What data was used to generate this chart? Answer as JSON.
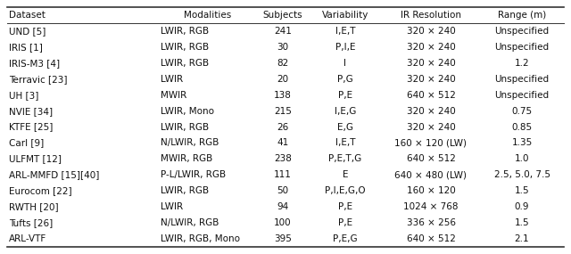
{
  "headers": [
    "Dataset",
    "Modalities",
    "Subjects",
    "Variability",
    "IR Resolution",
    "Range (m)"
  ],
  "rows": [
    [
      "UND [5]",
      "LWIR, RGB",
      "241",
      "I,E,T",
      "320 × 240",
      "Unspecified"
    ],
    [
      "IRIS [1]",
      "LWIR, RGB",
      "30",
      "P,I,E",
      "320 × 240",
      "Unspecified"
    ],
    [
      "IRIS-M3 [4]",
      "LWIR, RGB",
      "82",
      "I",
      "320 × 240",
      "1.2"
    ],
    [
      "Terravic [23]",
      "LWIR",
      "20",
      "P,G",
      "320 × 240",
      "Unspecified"
    ],
    [
      "UH [3]",
      "MWIR",
      "138",
      "P,E",
      "640 × 512",
      "Unspecified"
    ],
    [
      "NVIE [34]",
      "LWIR, Mono",
      "215",
      "I,E,G",
      "320 × 240",
      "0.75"
    ],
    [
      "KTFE [25]",
      "LWIR, RGB",
      "26",
      "E,G",
      "320 × 240",
      "0.85"
    ],
    [
      "Carl [9]",
      "N/LWIR, RGB",
      "41",
      "I,E,T",
      "160 × 120 (LW)",
      "1.35"
    ],
    [
      "ULFMT [12]",
      "MWIR, RGB",
      "238",
      "P,E,T,G",
      "640 × 512",
      "1.0"
    ],
    [
      "ARL-MMFD [15][40]",
      "P-L/LWIR, RGB",
      "111",
      "E",
      "640 × 480 (LW)",
      "2.5, 5.0, 7.5"
    ],
    [
      "Eurocom [22]",
      "LWIR, RGB",
      "50",
      "P,I,E,G,O",
      "160 × 120",
      "1.5"
    ],
    [
      "RWTH [20]",
      "LWIR",
      "94",
      "P,E",
      "1024 × 768",
      "0.9"
    ],
    [
      "Tufts [26]",
      "N/LWIR, RGB",
      "100",
      "P,E",
      "336 × 256",
      "1.5"
    ],
    [
      "ARL-VTF",
      "LWIR, RGB, Mono",
      "395",
      "P,E,G",
      "640 × 512",
      "2.1"
    ]
  ],
  "text_color": "#111111",
  "line_color": "#333333",
  "background_color": "#ffffff",
  "font_size": 7.5,
  "header_font_size": 7.5
}
